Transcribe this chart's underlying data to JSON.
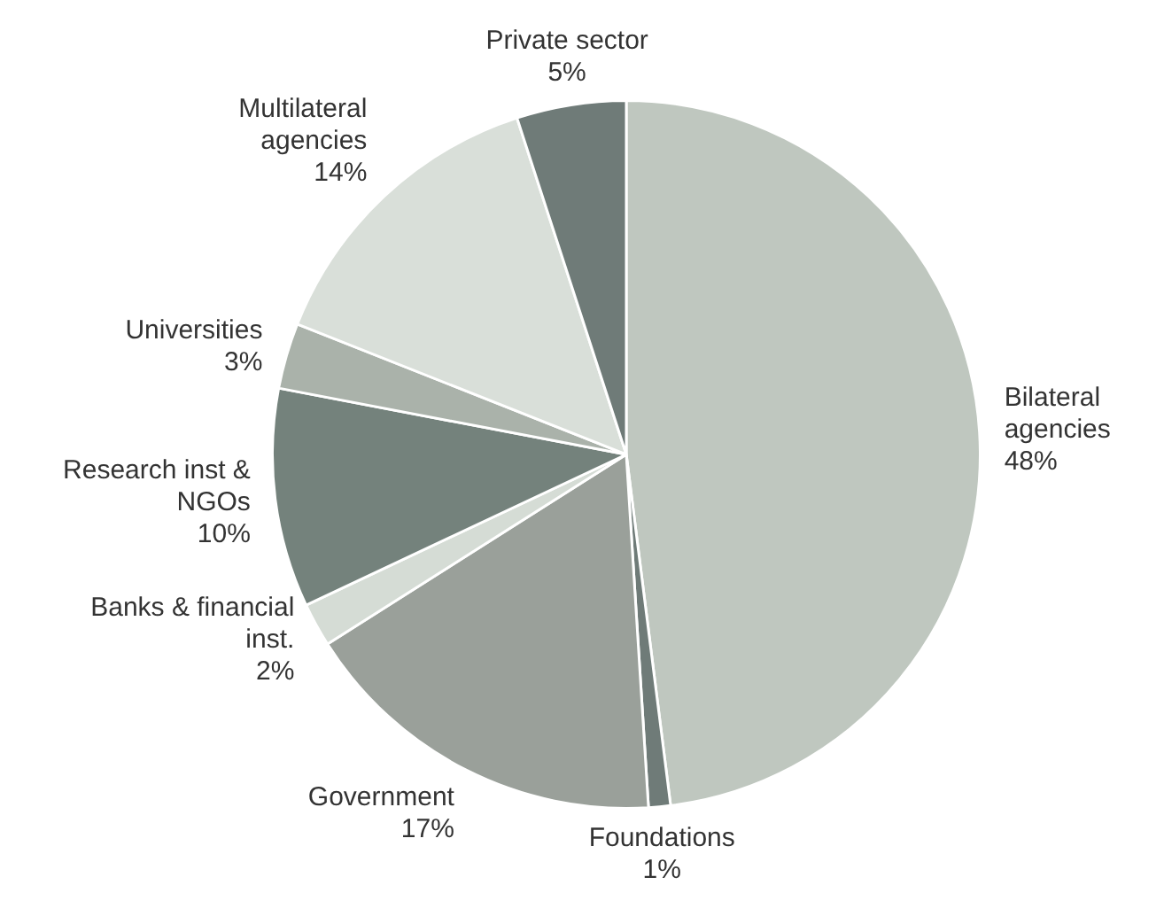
{
  "chart_data": {
    "type": "pie",
    "categories": [
      "Bilateral agencies",
      "Foundations",
      "Government",
      "Banks & financial inst.",
      "Research inst & NGOs",
      "Universities",
      "Multilateral agencies",
      "Private sector"
    ],
    "values": [
      48,
      1,
      17,
      2,
      10,
      3,
      14,
      5
    ],
    "colors": [
      "#bfc7bf",
      "#6f7b78",
      "#9aa09a",
      "#d5dcd5",
      "#74827c",
      "#aab2aa",
      "#d9dfd9",
      "#6f7b78"
    ],
    "value_labels": [
      "48%",
      "1%",
      "17%",
      "2%",
      "10%",
      "3%",
      "14%",
      "5%"
    ],
    "legend": false
  }
}
